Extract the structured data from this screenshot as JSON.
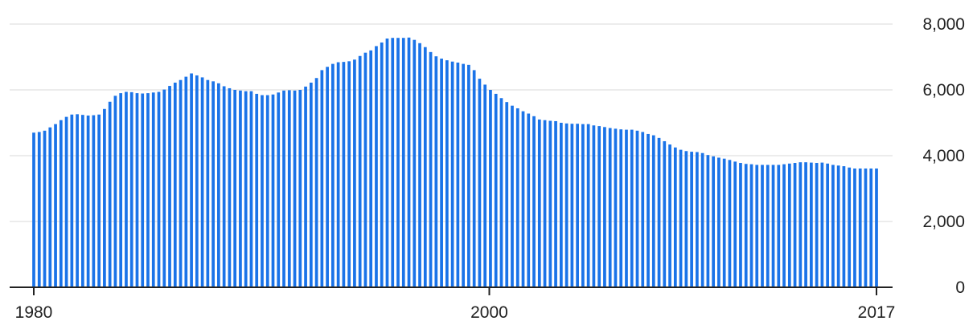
{
  "chart_data": {
    "type": "bar",
    "title": "",
    "xlabel": "",
    "ylabel": "",
    "grid": true,
    "ylim": [
      0,
      8000
    ],
    "y_ticks": [
      0,
      2000,
      4000,
      6000,
      8000
    ],
    "y_tick_labels": [
      "0",
      "2,000",
      "4,000",
      "6,000",
      "8,000"
    ],
    "x_ticks": [
      1980,
      2000,
      2017
    ],
    "x_tick_labels": [
      "1980",
      "2000",
      "2017"
    ],
    "x_start": 1980,
    "x_end": 2017,
    "bar_color": "#1a73e8",
    "values": [
      4700,
      4720,
      4760,
      4860,
      4960,
      5080,
      5180,
      5250,
      5260,
      5240,
      5220,
      5230,
      5250,
      5420,
      5640,
      5820,
      5900,
      5940,
      5930,
      5900,
      5890,
      5900,
      5920,
      5940,
      6010,
      6120,
      6220,
      6300,
      6400,
      6500,
      6440,
      6380,
      6300,
      6260,
      6200,
      6110,
      6050,
      6000,
      5980,
      5960,
      5960,
      5880,
      5840,
      5840,
      5860,
      5920,
      5980,
      5990,
      5980,
      6000,
      6100,
      6220,
      6360,
      6600,
      6700,
      6790,
      6840,
      6850,
      6870,
      6920,
      7030,
      7130,
      7200,
      7330,
      7440,
      7560,
      7580,
      7580,
      7580,
      7590,
      7520,
      7420,
      7300,
      7150,
      7020,
      6950,
      6900,
      6860,
      6830,
      6790,
      6760,
      6600,
      6340,
      6160,
      6000,
      5880,
      5750,
      5630,
      5520,
      5440,
      5350,
      5280,
      5200,
      5100,
      5080,
      5060,
      5050,
      5000,
      4980,
      4970,
      4970,
      4960,
      4960,
      4920,
      4900,
      4870,
      4840,
      4820,
      4800,
      4790,
      4790,
      4760,
      4720,
      4660,
      4620,
      4540,
      4440,
      4340,
      4250,
      4180,
      4140,
      4120,
      4110,
      4080,
      4020,
      3980,
      3940,
      3910,
      3870,
      3820,
      3780,
      3750,
      3740,
      3720,
      3720,
      3720,
      3720,
      3720,
      3740,
      3760,
      3780,
      3800,
      3800,
      3790,
      3780,
      3790,
      3760,
      3720,
      3700,
      3680,
      3640,
      3610,
      3610,
      3610,
      3610,
      3610
    ]
  }
}
